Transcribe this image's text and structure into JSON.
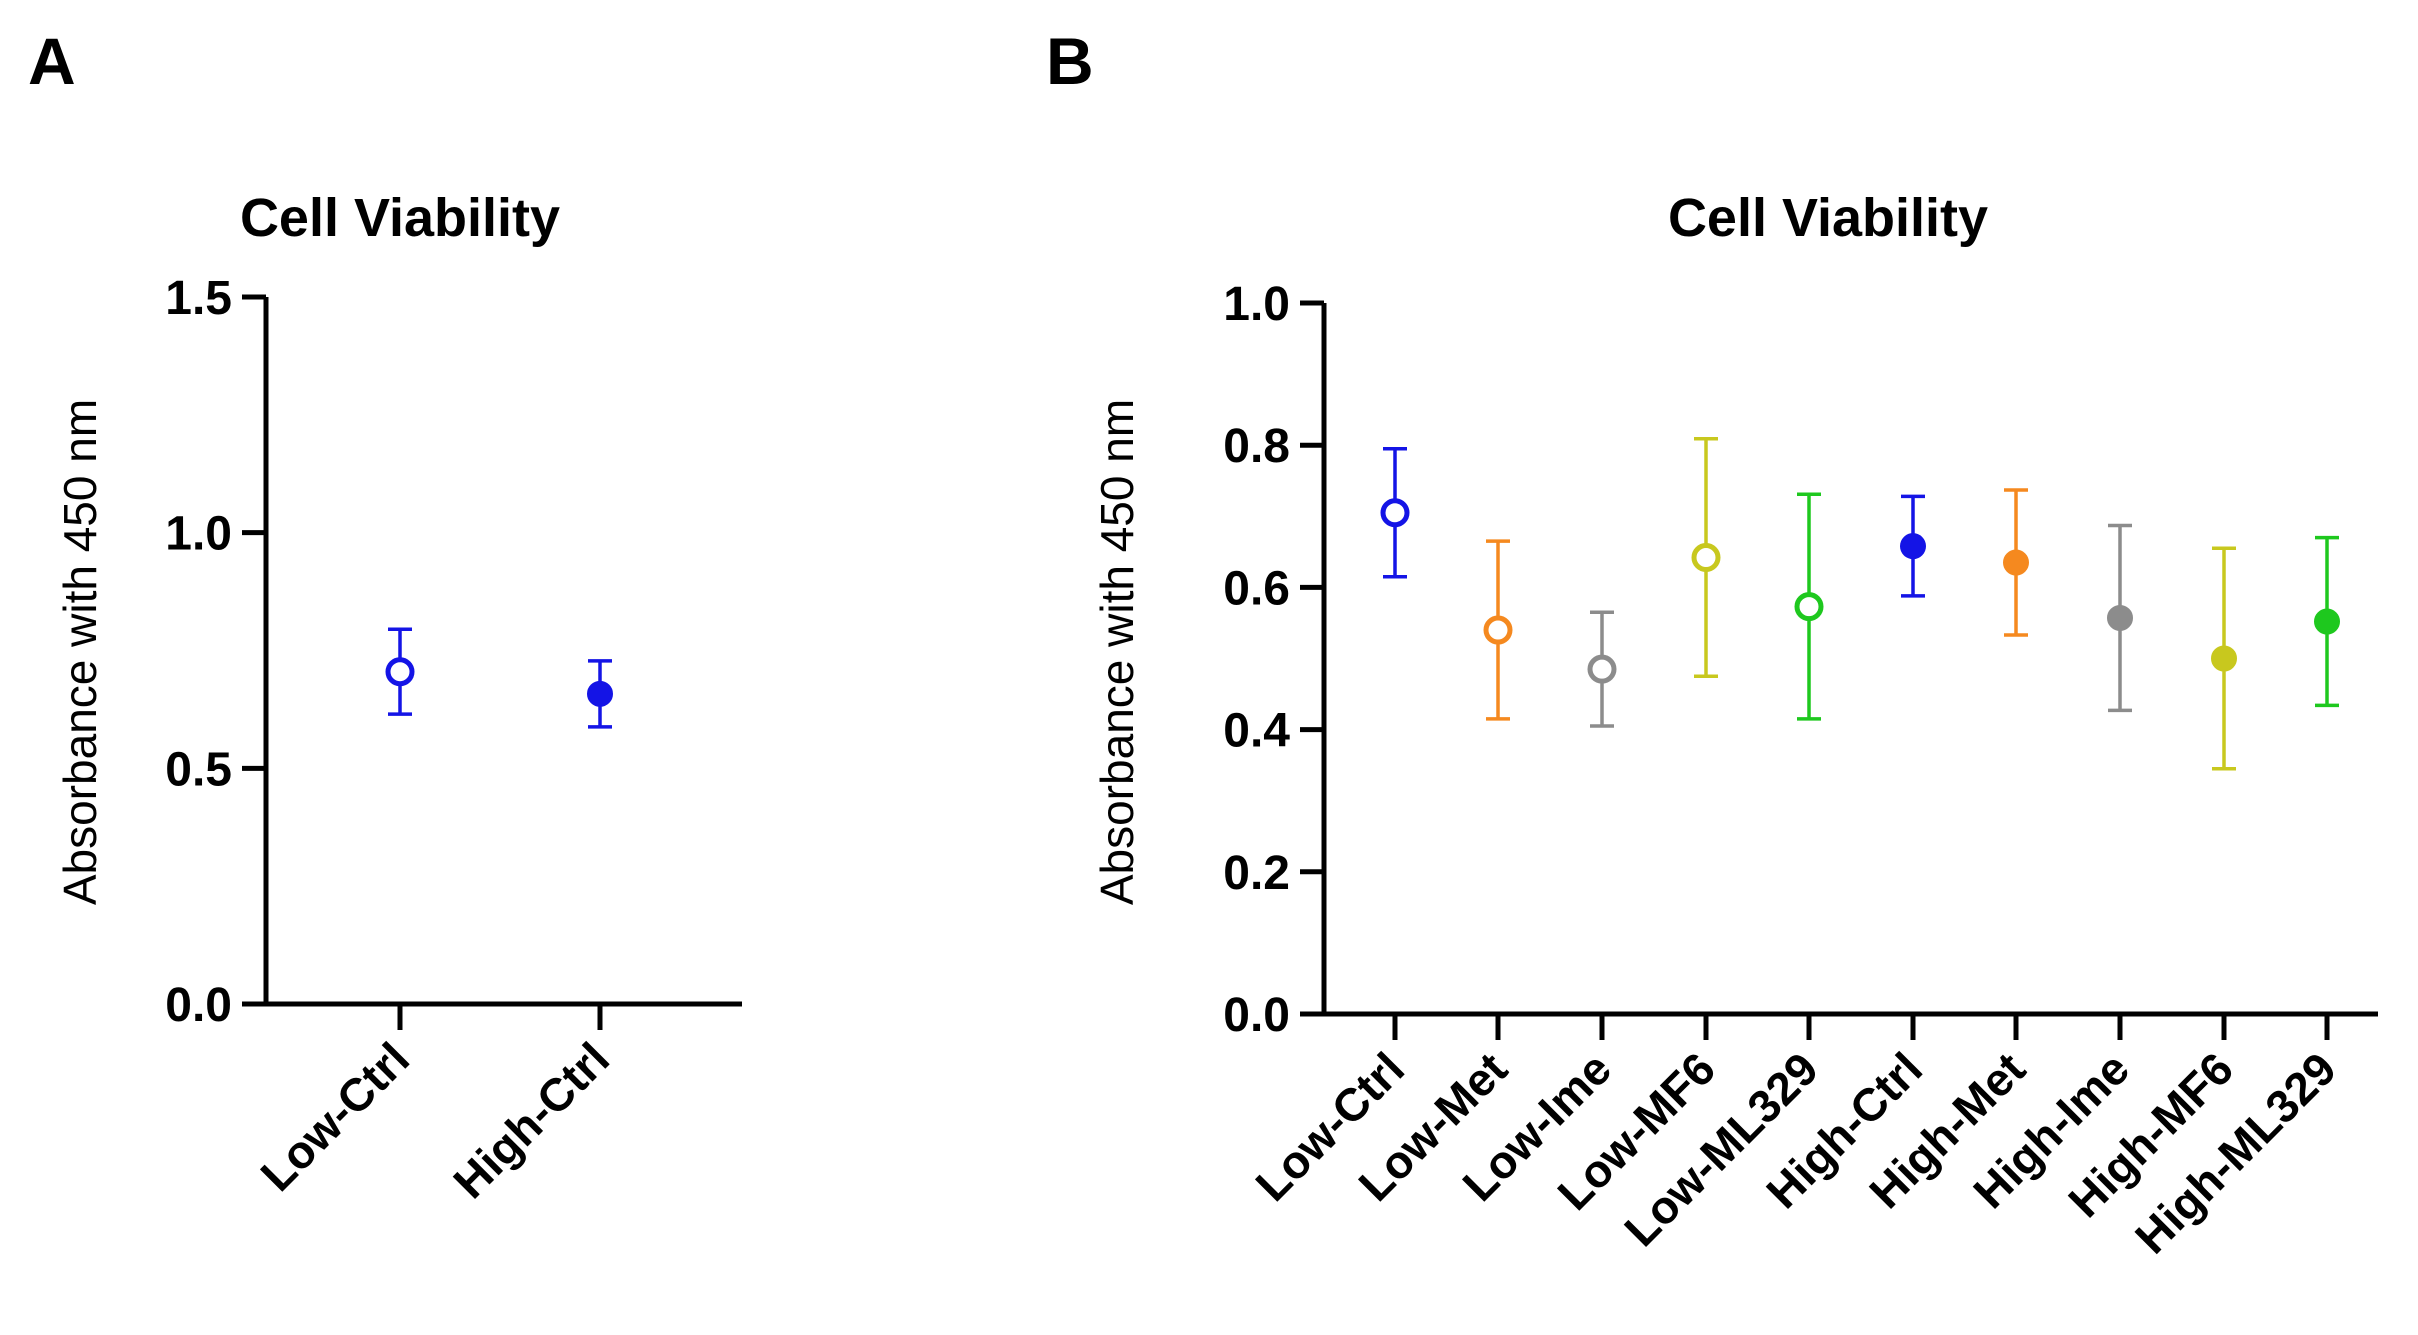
{
  "chart_data": [
    {
      "panel": "A",
      "type": "scatter",
      "title": "Cell Viability",
      "xlabel": "",
      "ylabel": "Absorbance with 450 nm",
      "ylim": [
        0,
        1.5
      ],
      "yticks": [
        0.0,
        0.5,
        1.0,
        1.5
      ],
      "ytick_labels": [
        "0.0",
        "0.5",
        "1.0",
        "1.5"
      ],
      "categories": [
        "Low-Ctrl",
        "High-Ctrl"
      ],
      "values": [
        0.705,
        0.658
      ],
      "errors": [
        0.09,
        0.07
      ],
      "colors": [
        "#1414e6",
        "#1414e6"
      ],
      "filled": [
        false,
        true
      ]
    },
    {
      "panel": "B",
      "type": "scatter",
      "title": "Cell Viability",
      "xlabel": "",
      "ylabel": "Absorbance with 450 nm",
      "ylim": [
        0,
        1.0
      ],
      "yticks": [
        0.0,
        0.2,
        0.4,
        0.6,
        0.8,
        1.0
      ],
      "ytick_labels": [
        "0.0",
        "0.2",
        "0.4",
        "0.6",
        "0.8",
        "1.0"
      ],
      "categories": [
        "Low-Ctrl",
        "Low-Met",
        "Low-Ime",
        "Low-MF6",
        "Low-ML329",
        "High-Ctrl",
        "High-Met",
        "High-Ime",
        "High-MF6",
        "High-ML329"
      ],
      "values": [
        0.705,
        0.54,
        0.485,
        0.642,
        0.573,
        0.658,
        0.635,
        0.557,
        0.5,
        0.552
      ],
      "errors": [
        0.09,
        0.125,
        0.08,
        0.167,
        0.158,
        0.07,
        0.102,
        0.13,
        0.155,
        0.118
      ],
      "colors": [
        "#1414e6",
        "#f5891f",
        "#8c8c8c",
        "#c8c81e",
        "#1ec81e",
        "#1414e6",
        "#f5891f",
        "#8c8c8c",
        "#c8c81e",
        "#1ec81e"
      ],
      "filled": [
        false,
        false,
        false,
        false,
        false,
        true,
        true,
        true,
        true,
        true
      ]
    }
  ]
}
